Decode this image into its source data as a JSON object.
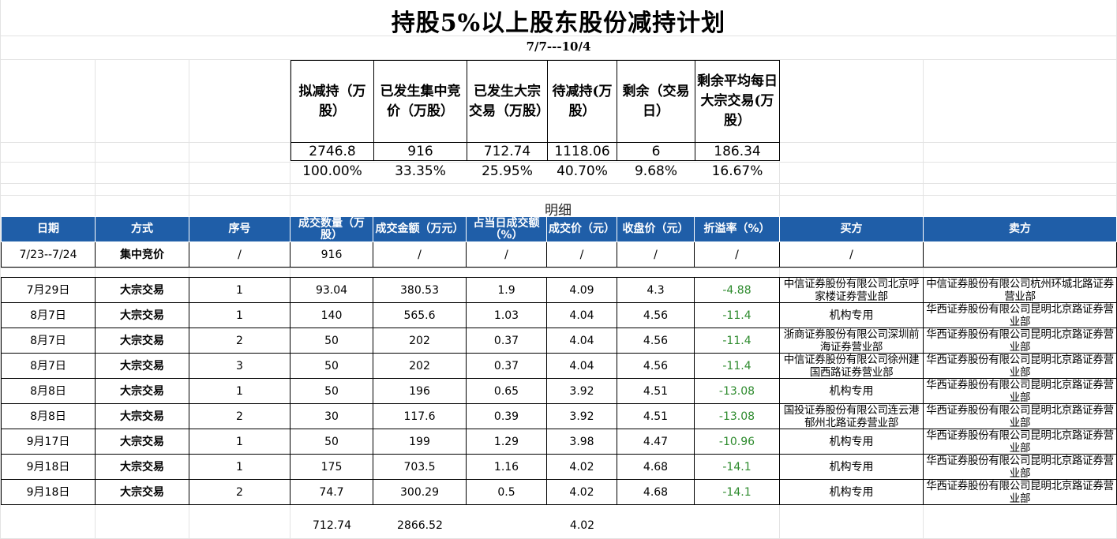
{
  "title": "持股5%以上股东股份减持计划",
  "date_range": "7/7---10/4",
  "summary": {
    "headers": [
      "拟减持（万股）",
      "已发生集中竞价（万股）",
      "已发生大宗交易（万股）",
      "待减持(万股）",
      "剩余（交易日）",
      "剩余平均每日大宗交易(万股）"
    ],
    "values": [
      "2746.8",
      "916",
      "712.74",
      "1118.06",
      "6",
      "186.34"
    ],
    "percents": [
      "100.00%",
      "33.35%",
      "25.95%",
      "40.70%",
      "9.68%",
      "16.67%"
    ]
  },
  "detail_label": "明细",
  "detail": {
    "headers": [
      "日期",
      "方式",
      "序号",
      "成交数量（万股）",
      "成交金额（万元）",
      "占当日成交额（%）",
      "成交价（元）",
      "收盘价（元）",
      "折溢率（%）",
      "买方",
      "卖方"
    ],
    "auction_row": [
      "7/23--7/24",
      "集中竞价",
      "/",
      "916",
      "/",
      "/",
      "/",
      "/",
      "/",
      "/",
      ""
    ],
    "rows": [
      [
        "7月29日",
        "大宗交易",
        "1",
        "93.04",
        "380.53",
        "1.9",
        "4.09",
        "4.3",
        "-4.88",
        "中信证券股份有限公司北京呼家楼证券营业部",
        "中信证券股份有限公司杭州环城北路证券营业部"
      ],
      [
        "8月7日",
        "大宗交易",
        "1",
        "140",
        "565.6",
        "1.03",
        "4.04",
        "4.56",
        "-11.4",
        "机构专用",
        "华西证券股份有限公司昆明北京路证券营业部"
      ],
      [
        "8月7日",
        "大宗交易",
        "2",
        "50",
        "202",
        "0.37",
        "4.04",
        "4.56",
        "-11.4",
        "浙商证券股份有限公司深圳前海证券营业部",
        "华西证券股份有限公司昆明北京路证券营业部"
      ],
      [
        "8月7日",
        "大宗交易",
        "3",
        "50",
        "202",
        "0.37",
        "4.04",
        "4.56",
        "-11.4",
        "中信证券股份有限公司徐州建国西路证券营业部",
        "华西证券股份有限公司昆明北京路证券营业部"
      ],
      [
        "8月8日",
        "大宗交易",
        "1",
        "50",
        "196",
        "0.65",
        "3.92",
        "4.51",
        "-13.08",
        "机构专用",
        "华西证券股份有限公司昆明北京路证券营业部"
      ],
      [
        "8月8日",
        "大宗交易",
        "2",
        "30",
        "117.6",
        "0.39",
        "3.92",
        "4.51",
        "-13.08",
        "国投证券股份有限公司连云港郁州北路证券营业部",
        "华西证券股份有限公司昆明北京路证券营业部"
      ],
      [
        "9月17日",
        "大宗交易",
        "1",
        "50",
        "199",
        "1.29",
        "3.98",
        "4.47",
        "-10.96",
        "机构专用",
        "华西证券股份有限公司昆明北京路证券营业部"
      ],
      [
        "9月18日",
        "大宗交易",
        "1",
        "175",
        "703.5",
        "1.16",
        "4.02",
        "4.68",
        "-14.1",
        "机构专用",
        "华西证券股份有限公司昆明北京路证券营业部"
      ],
      [
        "9月18日",
        "大宗交易",
        "2",
        "74.7",
        "300.29",
        "0.5",
        "4.02",
        "4.68",
        "-14.1",
        "机构专用",
        "华西证券股份有限公司昆明北京路证券营业部"
      ]
    ],
    "totals": {
      "quantity": "712.74",
      "amount": "2866.52",
      "price": "4.02"
    }
  },
  "colors": {
    "header_bg": "#1f5ea8",
    "negative_green": "#2e8b2e",
    "gridline": "#e3e3e3"
  }
}
